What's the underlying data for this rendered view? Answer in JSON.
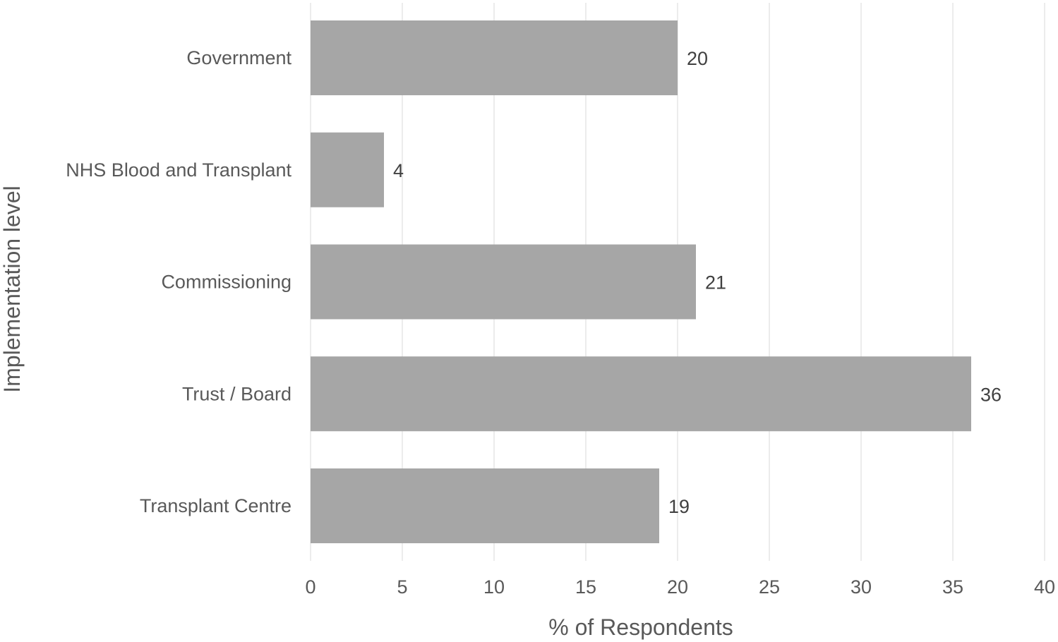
{
  "chart_data": {
    "type": "bar",
    "orientation": "horizontal",
    "categories": [
      "Government",
      "NHS Blood and Transplant",
      "Commissioning",
      "Trust / Board",
      "Transplant Centre"
    ],
    "values": [
      20,
      4,
      21,
      36,
      19
    ],
    "data_labels": [
      "20",
      "4",
      "21",
      "36",
      "19"
    ],
    "xlabel": "% of Respondents",
    "ylabel": "Implementation level",
    "xlim": [
      0,
      40
    ],
    "xticks": [
      0,
      5,
      10,
      15,
      20,
      25,
      30,
      35,
      40
    ],
    "grid": "vertical",
    "legend": "none",
    "colors": {
      "bar": "#a6a6a6",
      "grid": "#d9d9d9",
      "text": "#595959",
      "data_label": "#404040"
    }
  }
}
